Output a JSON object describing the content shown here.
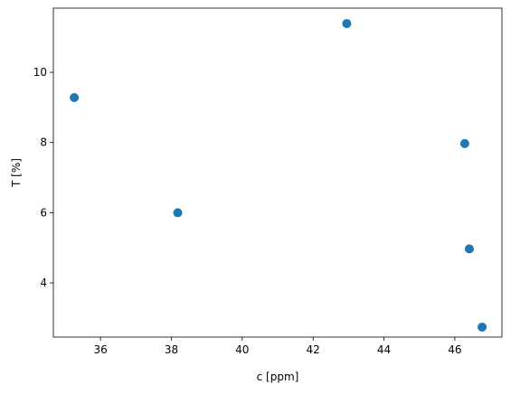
{
  "chart_data": {
    "type": "scatter",
    "x": [
      35.26,
      38.18,
      42.95,
      46.28,
      46.41,
      46.77
    ],
    "values": [
      9.28,
      6.0,
      11.39,
      7.97,
      4.97,
      2.74
    ],
    "color": "#1f77b4",
    "xlabel": "c [ppm]",
    "ylabel": "T [%]",
    "xlim": [
      34.67,
      47.33
    ],
    "xticks": [
      36,
      38,
      40,
      42,
      44,
      46
    ],
    "ylim": [
      2.456,
      11.83
    ],
    "yticks": [
      4,
      6,
      8,
      10
    ],
    "grid": false
  }
}
